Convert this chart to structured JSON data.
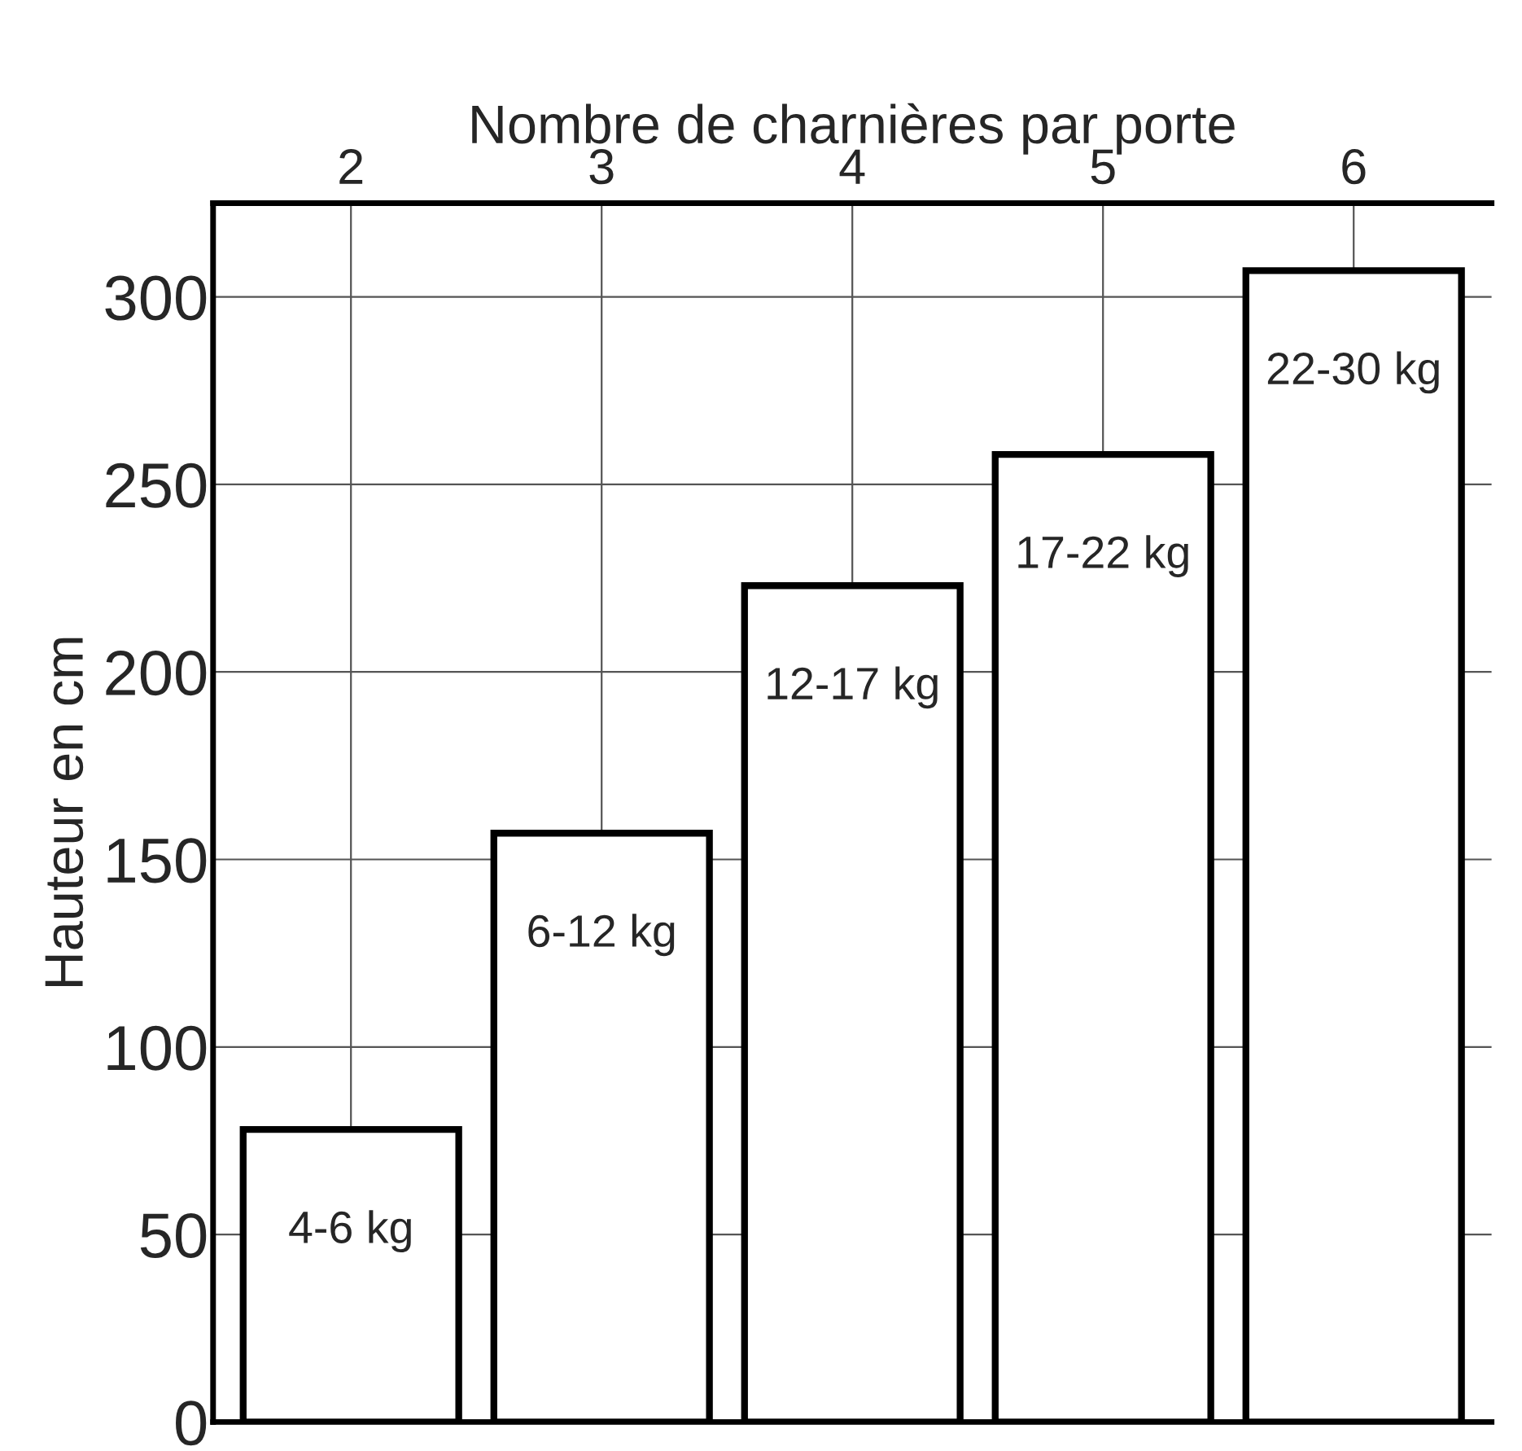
{
  "chart_data": {
    "type": "bar",
    "xlabel": "Nombre de charnières par porte",
    "ylabel": "Hauteur en cm",
    "categories": [
      "2",
      "3",
      "4",
      "5",
      "6"
    ],
    "values": [
      78,
      157,
      223,
      258,
      307
    ],
    "color": "#ffffff",
    "ylim": [
      0,
      325
    ],
    "yticks": [
      0,
      50,
      100,
      150,
      200,
      250,
      300
    ],
    "grid": true,
    "annotations": [
      "4-6 kg",
      "6-12 kg",
      "12-17 kg",
      "17-22 kg",
      "22-30 kg"
    ]
  }
}
